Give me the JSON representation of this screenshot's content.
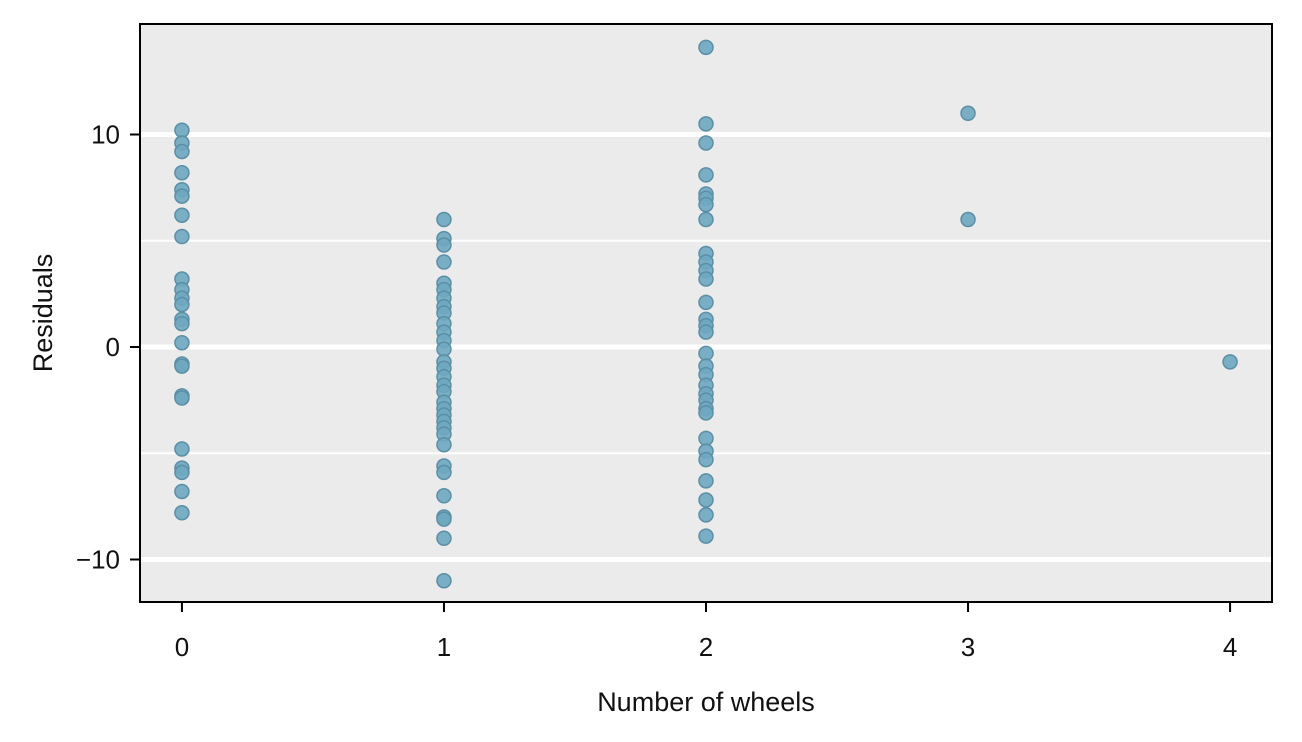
{
  "chart_data": {
    "type": "scatter",
    "title": "",
    "xlabel": "Number of wheels",
    "ylabel": "Residuals",
    "xlim": [
      -0.16,
      4.16
    ],
    "ylim": [
      -12.0,
      15.2
    ],
    "x_ticks": [
      0,
      1,
      2,
      3,
      4
    ],
    "x_tick_labels": [
      "0",
      "1",
      "2",
      "3",
      "4"
    ],
    "y_ticks": [
      -10,
      0,
      10
    ],
    "y_tick_labels": [
      "−10",
      "0",
      "10"
    ],
    "y_minor_gridlines": [
      -5,
      5
    ],
    "grid": true,
    "legend": "none",
    "colors": {
      "panel_background": "#ebebeb",
      "gridline": "#ffffff",
      "point_fill": "#6fa8c0",
      "point_stroke": "#5b8fa6"
    },
    "series": [
      {
        "values": [
          {
            "x": 0,
            "y": 10.2
          },
          {
            "x": 0,
            "y": 9.6
          },
          {
            "x": 0,
            "y": 9.2
          },
          {
            "x": 0,
            "y": 8.2
          },
          {
            "x": 0,
            "y": 7.4
          },
          {
            "x": 0,
            "y": 7.1
          },
          {
            "x": 0,
            "y": 6.2
          },
          {
            "x": 0,
            "y": 5.2
          },
          {
            "x": 0,
            "y": 3.2
          },
          {
            "x": 0,
            "y": 2.7
          },
          {
            "x": 0,
            "y": 2.3
          },
          {
            "x": 0,
            "y": 2.0
          },
          {
            "x": 0,
            "y": 1.3
          },
          {
            "x": 0,
            "y": 1.1
          },
          {
            "x": 0,
            "y": 0.2
          },
          {
            "x": 0,
            "y": -0.8
          },
          {
            "x": 0,
            "y": -0.9
          },
          {
            "x": 0,
            "y": -2.3
          },
          {
            "x": 0,
            "y": -2.4
          },
          {
            "x": 0,
            "y": -4.8
          },
          {
            "x": 0,
            "y": -5.7
          },
          {
            "x": 0,
            "y": -5.9
          },
          {
            "x": 0,
            "y": -6.8
          },
          {
            "x": 0,
            "y": -7.8
          },
          {
            "x": 1,
            "y": 6.0
          },
          {
            "x": 1,
            "y": 5.1
          },
          {
            "x": 1,
            "y": 4.8
          },
          {
            "x": 1,
            "y": 4.0
          },
          {
            "x": 1,
            "y": 3.0
          },
          {
            "x": 1,
            "y": 2.7
          },
          {
            "x": 1,
            "y": 2.3
          },
          {
            "x": 1,
            "y": 1.9
          },
          {
            "x": 1,
            "y": 1.6
          },
          {
            "x": 1,
            "y": 1.1
          },
          {
            "x": 1,
            "y": 0.7
          },
          {
            "x": 1,
            "y": 0.3
          },
          {
            "x": 1,
            "y": -0.1
          },
          {
            "x": 1,
            "y": -0.7
          },
          {
            "x": 1,
            "y": -1.0
          },
          {
            "x": 1,
            "y": -1.4
          },
          {
            "x": 1,
            "y": -1.8
          },
          {
            "x": 1,
            "y": -2.1
          },
          {
            "x": 1,
            "y": -2.6
          },
          {
            "x": 1,
            "y": -2.9
          },
          {
            "x": 1,
            "y": -3.2
          },
          {
            "x": 1,
            "y": -3.5
          },
          {
            "x": 1,
            "y": -3.8
          },
          {
            "x": 1,
            "y": -4.1
          },
          {
            "x": 1,
            "y": -4.6
          },
          {
            "x": 1,
            "y": -5.6
          },
          {
            "x": 1,
            "y": -5.9
          },
          {
            "x": 1,
            "y": -7.0
          },
          {
            "x": 1,
            "y": -8.0
          },
          {
            "x": 1,
            "y": -8.1
          },
          {
            "x": 1,
            "y": -9.0
          },
          {
            "x": 1,
            "y": -11.0
          },
          {
            "x": 2,
            "y": 14.1
          },
          {
            "x": 2,
            "y": 10.5
          },
          {
            "x": 2,
            "y": 9.6
          },
          {
            "x": 2,
            "y": 8.1
          },
          {
            "x": 2,
            "y": 7.2
          },
          {
            "x": 2,
            "y": 7.0
          },
          {
            "x": 2,
            "y": 6.7
          },
          {
            "x": 2,
            "y": 6.0
          },
          {
            "x": 2,
            "y": 4.4
          },
          {
            "x": 2,
            "y": 4.0
          },
          {
            "x": 2,
            "y": 3.6
          },
          {
            "x": 2,
            "y": 3.2
          },
          {
            "x": 2,
            "y": 2.1
          },
          {
            "x": 2,
            "y": 1.3
          },
          {
            "x": 2,
            "y": 1.0
          },
          {
            "x": 2,
            "y": 0.7
          },
          {
            "x": 2,
            "y": -0.3
          },
          {
            "x": 2,
            "y": -0.9
          },
          {
            "x": 2,
            "y": -1.3
          },
          {
            "x": 2,
            "y": -1.8
          },
          {
            "x": 2,
            "y": -2.2
          },
          {
            "x": 2,
            "y": -2.5
          },
          {
            "x": 2,
            "y": -2.9
          },
          {
            "x": 2,
            "y": -3.1
          },
          {
            "x": 2,
            "y": -4.3
          },
          {
            "x": 2,
            "y": -4.9
          },
          {
            "x": 2,
            "y": -5.3
          },
          {
            "x": 2,
            "y": -6.3
          },
          {
            "x": 2,
            "y": -7.2
          },
          {
            "x": 2,
            "y": -7.9
          },
          {
            "x": 2,
            "y": -8.9
          },
          {
            "x": 3,
            "y": 11.0
          },
          {
            "x": 3,
            "y": 6.0
          },
          {
            "x": 4,
            "y": -0.7
          }
        ]
      }
    ]
  }
}
